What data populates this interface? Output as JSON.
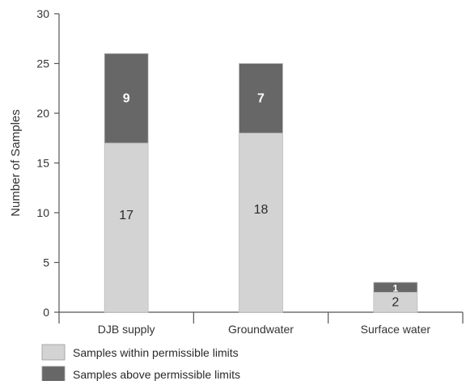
{
  "chart_data": {
    "type": "bar",
    "stacked": true,
    "categories": [
      "DJB supply",
      "Groundwater",
      "Surface water"
    ],
    "series": [
      {
        "name": "Samples within permissible limits",
        "values": [
          17,
          18,
          2
        ],
        "labels": [
          "17",
          "18",
          "2"
        ],
        "color": "#d3d3d3"
      },
      {
        "name": "Samples above permissible limits",
        "values": [
          9,
          7,
          1
        ],
        "labels": [
          "9",
          "7",
          "1"
        ],
        "color": "#676767"
      }
    ],
    "title": "",
    "xlabel": "",
    "ylabel": "Number of Samples",
    "ylim": [
      0,
      30
    ],
    "yticks": [
      0,
      5,
      10,
      15,
      20,
      25,
      30
    ],
    "grid": false,
    "legend_position": "bottom-left"
  }
}
